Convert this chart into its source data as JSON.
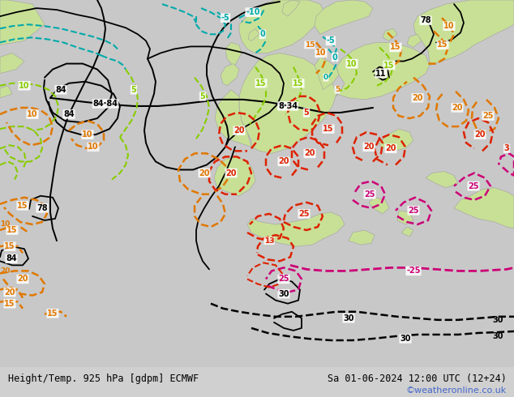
{
  "title_left": "Height/Temp. 925 hPa [gdpm] ECMWF",
  "title_right": "Sa 01-06-2024 12:00 UTC (12+24)",
  "watermark": "©weatheronline.co.uk",
  "fig_width": 6.34,
  "fig_height": 4.9,
  "dpi": 100,
  "title_fontsize": 8.5,
  "watermark_color": "#4466cc",
  "bg_color": "#d0d0d0",
  "sea_color": "#c8c8c8",
  "land_color": "#c8e096",
  "border_gray": "#a0a0a0"
}
